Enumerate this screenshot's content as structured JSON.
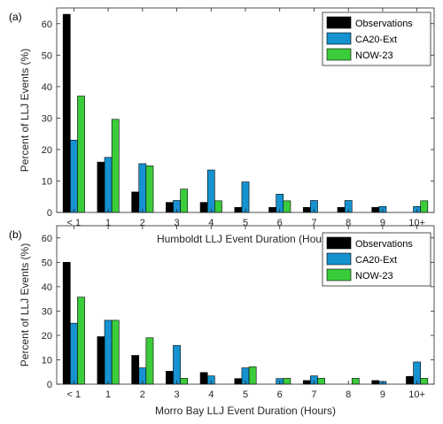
{
  "colors": {
    "obs": "#000000",
    "ca20": "#1592cf",
    "now23": "#3bcc3b"
  },
  "chart_data": [
    {
      "type": "bar",
      "panel_label": "(a)",
      "title": "",
      "xlabel": "Humboldt LLJ Event Duration (Hours)",
      "ylabel": "Percent of LLJ Events (%)",
      "ylim": [
        0,
        65
      ],
      "yticks": [
        0,
        10,
        20,
        30,
        40,
        50,
        60
      ],
      "grid": false,
      "legend_position": "top-right",
      "categories": [
        "< 1",
        "1",
        "2",
        "3",
        "4",
        "5",
        "6",
        "7",
        "8",
        "9",
        "10+"
      ],
      "series": [
        {
          "name": "Observations",
          "color_key": "obs",
          "values": [
            63,
            16,
            6.5,
            3.2,
            3.2,
            1.6,
            1.6,
            1.6,
            1.6,
            1.6,
            0
          ]
        },
        {
          "name": "CA20-Ext",
          "color_key": "ca20",
          "values": [
            23,
            17.5,
            15.5,
            3.8,
            13.5,
            9.7,
            5.8,
            3.8,
            3.8,
            1.9,
            1.9
          ]
        },
        {
          "name": "NOW-23",
          "color_key": "now23",
          "values": [
            37,
            29.6,
            14.8,
            7.4,
            3.7,
            0,
            3.7,
            0,
            0,
            0,
            3.7
          ]
        }
      ]
    },
    {
      "type": "bar",
      "panel_label": "(b)",
      "title": "",
      "xlabel": "Morro Bay LLJ Event Duration (Hours)",
      "ylabel": "Percent of LLJ Events (%)",
      "ylim": [
        0,
        65
      ],
      "yticks": [
        0,
        10,
        20,
        30,
        40,
        50,
        60
      ],
      "grid": false,
      "legend_position": "top-right",
      "categories": [
        "< 1",
        "1",
        "2",
        "3",
        "4",
        "5",
        "6",
        "7",
        "8",
        "9",
        "10+"
      ],
      "series": [
        {
          "name": "Observations",
          "color_key": "obs",
          "values": [
            50,
            19.5,
            11.8,
            5.3,
            4.8,
            2.3,
            0,
            1.5,
            0,
            1.5,
            3.2
          ]
        },
        {
          "name": "CA20-Ext",
          "color_key": "ca20",
          "values": [
            25,
            26.2,
            6.7,
            15.9,
            3.4,
            6.7,
            2.3,
            3.4,
            0,
            1.1,
            9.1
          ]
        },
        {
          "name": "NOW-23",
          "color_key": "now23",
          "values": [
            35.7,
            26.2,
            19.0,
            2.4,
            0,
            7.1,
            2.4,
            2.4,
            2.4,
            0,
            2.4
          ]
        }
      ]
    }
  ]
}
